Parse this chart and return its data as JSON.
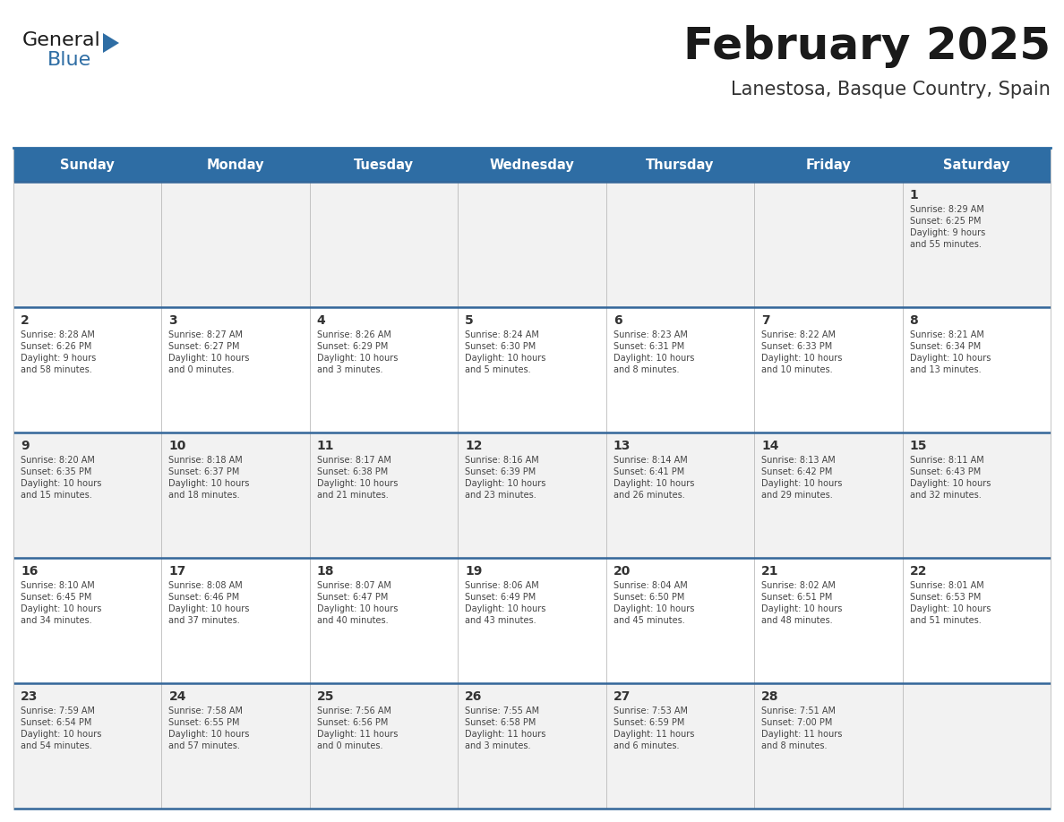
{
  "title": "February 2025",
  "subtitle": "Lanestosa, Basque Country, Spain",
  "days_of_week": [
    "Sunday",
    "Monday",
    "Tuesday",
    "Wednesday",
    "Thursday",
    "Friday",
    "Saturday"
  ],
  "header_bg": "#2E6DA4",
  "header_text": "#FFFFFF",
  "cell_bg_odd": "#F2F2F2",
  "cell_bg_even": "#FFFFFF",
  "divider_color": "#336699",
  "cell_border_color": "#BBBBBB",
  "text_color": "#444444",
  "day_num_color": "#333333",
  "title_color": "#1a1a1a",
  "subtitle_color": "#333333",
  "week_rows": [
    {
      "days": [
        {
          "day": null,
          "info": null
        },
        {
          "day": null,
          "info": null
        },
        {
          "day": null,
          "info": null
        },
        {
          "day": null,
          "info": null
        },
        {
          "day": null,
          "info": null
        },
        {
          "day": null,
          "info": null
        },
        {
          "day": 1,
          "info": "Sunrise: 8:29 AM\nSunset: 6:25 PM\nDaylight: 9 hours\nand 55 minutes."
        }
      ]
    },
    {
      "days": [
        {
          "day": 2,
          "info": "Sunrise: 8:28 AM\nSunset: 6:26 PM\nDaylight: 9 hours\nand 58 minutes."
        },
        {
          "day": 3,
          "info": "Sunrise: 8:27 AM\nSunset: 6:27 PM\nDaylight: 10 hours\nand 0 minutes."
        },
        {
          "day": 4,
          "info": "Sunrise: 8:26 AM\nSunset: 6:29 PM\nDaylight: 10 hours\nand 3 minutes."
        },
        {
          "day": 5,
          "info": "Sunrise: 8:24 AM\nSunset: 6:30 PM\nDaylight: 10 hours\nand 5 minutes."
        },
        {
          "day": 6,
          "info": "Sunrise: 8:23 AM\nSunset: 6:31 PM\nDaylight: 10 hours\nand 8 minutes."
        },
        {
          "day": 7,
          "info": "Sunrise: 8:22 AM\nSunset: 6:33 PM\nDaylight: 10 hours\nand 10 minutes."
        },
        {
          "day": 8,
          "info": "Sunrise: 8:21 AM\nSunset: 6:34 PM\nDaylight: 10 hours\nand 13 minutes."
        }
      ]
    },
    {
      "days": [
        {
          "day": 9,
          "info": "Sunrise: 8:20 AM\nSunset: 6:35 PM\nDaylight: 10 hours\nand 15 minutes."
        },
        {
          "day": 10,
          "info": "Sunrise: 8:18 AM\nSunset: 6:37 PM\nDaylight: 10 hours\nand 18 minutes."
        },
        {
          "day": 11,
          "info": "Sunrise: 8:17 AM\nSunset: 6:38 PM\nDaylight: 10 hours\nand 21 minutes."
        },
        {
          "day": 12,
          "info": "Sunrise: 8:16 AM\nSunset: 6:39 PM\nDaylight: 10 hours\nand 23 minutes."
        },
        {
          "day": 13,
          "info": "Sunrise: 8:14 AM\nSunset: 6:41 PM\nDaylight: 10 hours\nand 26 minutes."
        },
        {
          "day": 14,
          "info": "Sunrise: 8:13 AM\nSunset: 6:42 PM\nDaylight: 10 hours\nand 29 minutes."
        },
        {
          "day": 15,
          "info": "Sunrise: 8:11 AM\nSunset: 6:43 PM\nDaylight: 10 hours\nand 32 minutes."
        }
      ]
    },
    {
      "days": [
        {
          "day": 16,
          "info": "Sunrise: 8:10 AM\nSunset: 6:45 PM\nDaylight: 10 hours\nand 34 minutes."
        },
        {
          "day": 17,
          "info": "Sunrise: 8:08 AM\nSunset: 6:46 PM\nDaylight: 10 hours\nand 37 minutes."
        },
        {
          "day": 18,
          "info": "Sunrise: 8:07 AM\nSunset: 6:47 PM\nDaylight: 10 hours\nand 40 minutes."
        },
        {
          "day": 19,
          "info": "Sunrise: 8:06 AM\nSunset: 6:49 PM\nDaylight: 10 hours\nand 43 minutes."
        },
        {
          "day": 20,
          "info": "Sunrise: 8:04 AM\nSunset: 6:50 PM\nDaylight: 10 hours\nand 45 minutes."
        },
        {
          "day": 21,
          "info": "Sunrise: 8:02 AM\nSunset: 6:51 PM\nDaylight: 10 hours\nand 48 minutes."
        },
        {
          "day": 22,
          "info": "Sunrise: 8:01 AM\nSunset: 6:53 PM\nDaylight: 10 hours\nand 51 minutes."
        }
      ]
    },
    {
      "days": [
        {
          "day": 23,
          "info": "Sunrise: 7:59 AM\nSunset: 6:54 PM\nDaylight: 10 hours\nand 54 minutes."
        },
        {
          "day": 24,
          "info": "Sunrise: 7:58 AM\nSunset: 6:55 PM\nDaylight: 10 hours\nand 57 minutes."
        },
        {
          "day": 25,
          "info": "Sunrise: 7:56 AM\nSunset: 6:56 PM\nDaylight: 11 hours\nand 0 minutes."
        },
        {
          "day": 26,
          "info": "Sunrise: 7:55 AM\nSunset: 6:58 PM\nDaylight: 11 hours\nand 3 minutes."
        },
        {
          "day": 27,
          "info": "Sunrise: 7:53 AM\nSunset: 6:59 PM\nDaylight: 11 hours\nand 6 minutes."
        },
        {
          "day": 28,
          "info": "Sunrise: 7:51 AM\nSunset: 7:00 PM\nDaylight: 11 hours\nand 8 minutes."
        },
        {
          "day": null,
          "info": null
        }
      ]
    }
  ],
  "logo_color_general": "#1a1a1a",
  "logo_color_blue": "#2E6DA4",
  "logo_triangle_color": "#2E6DA4"
}
